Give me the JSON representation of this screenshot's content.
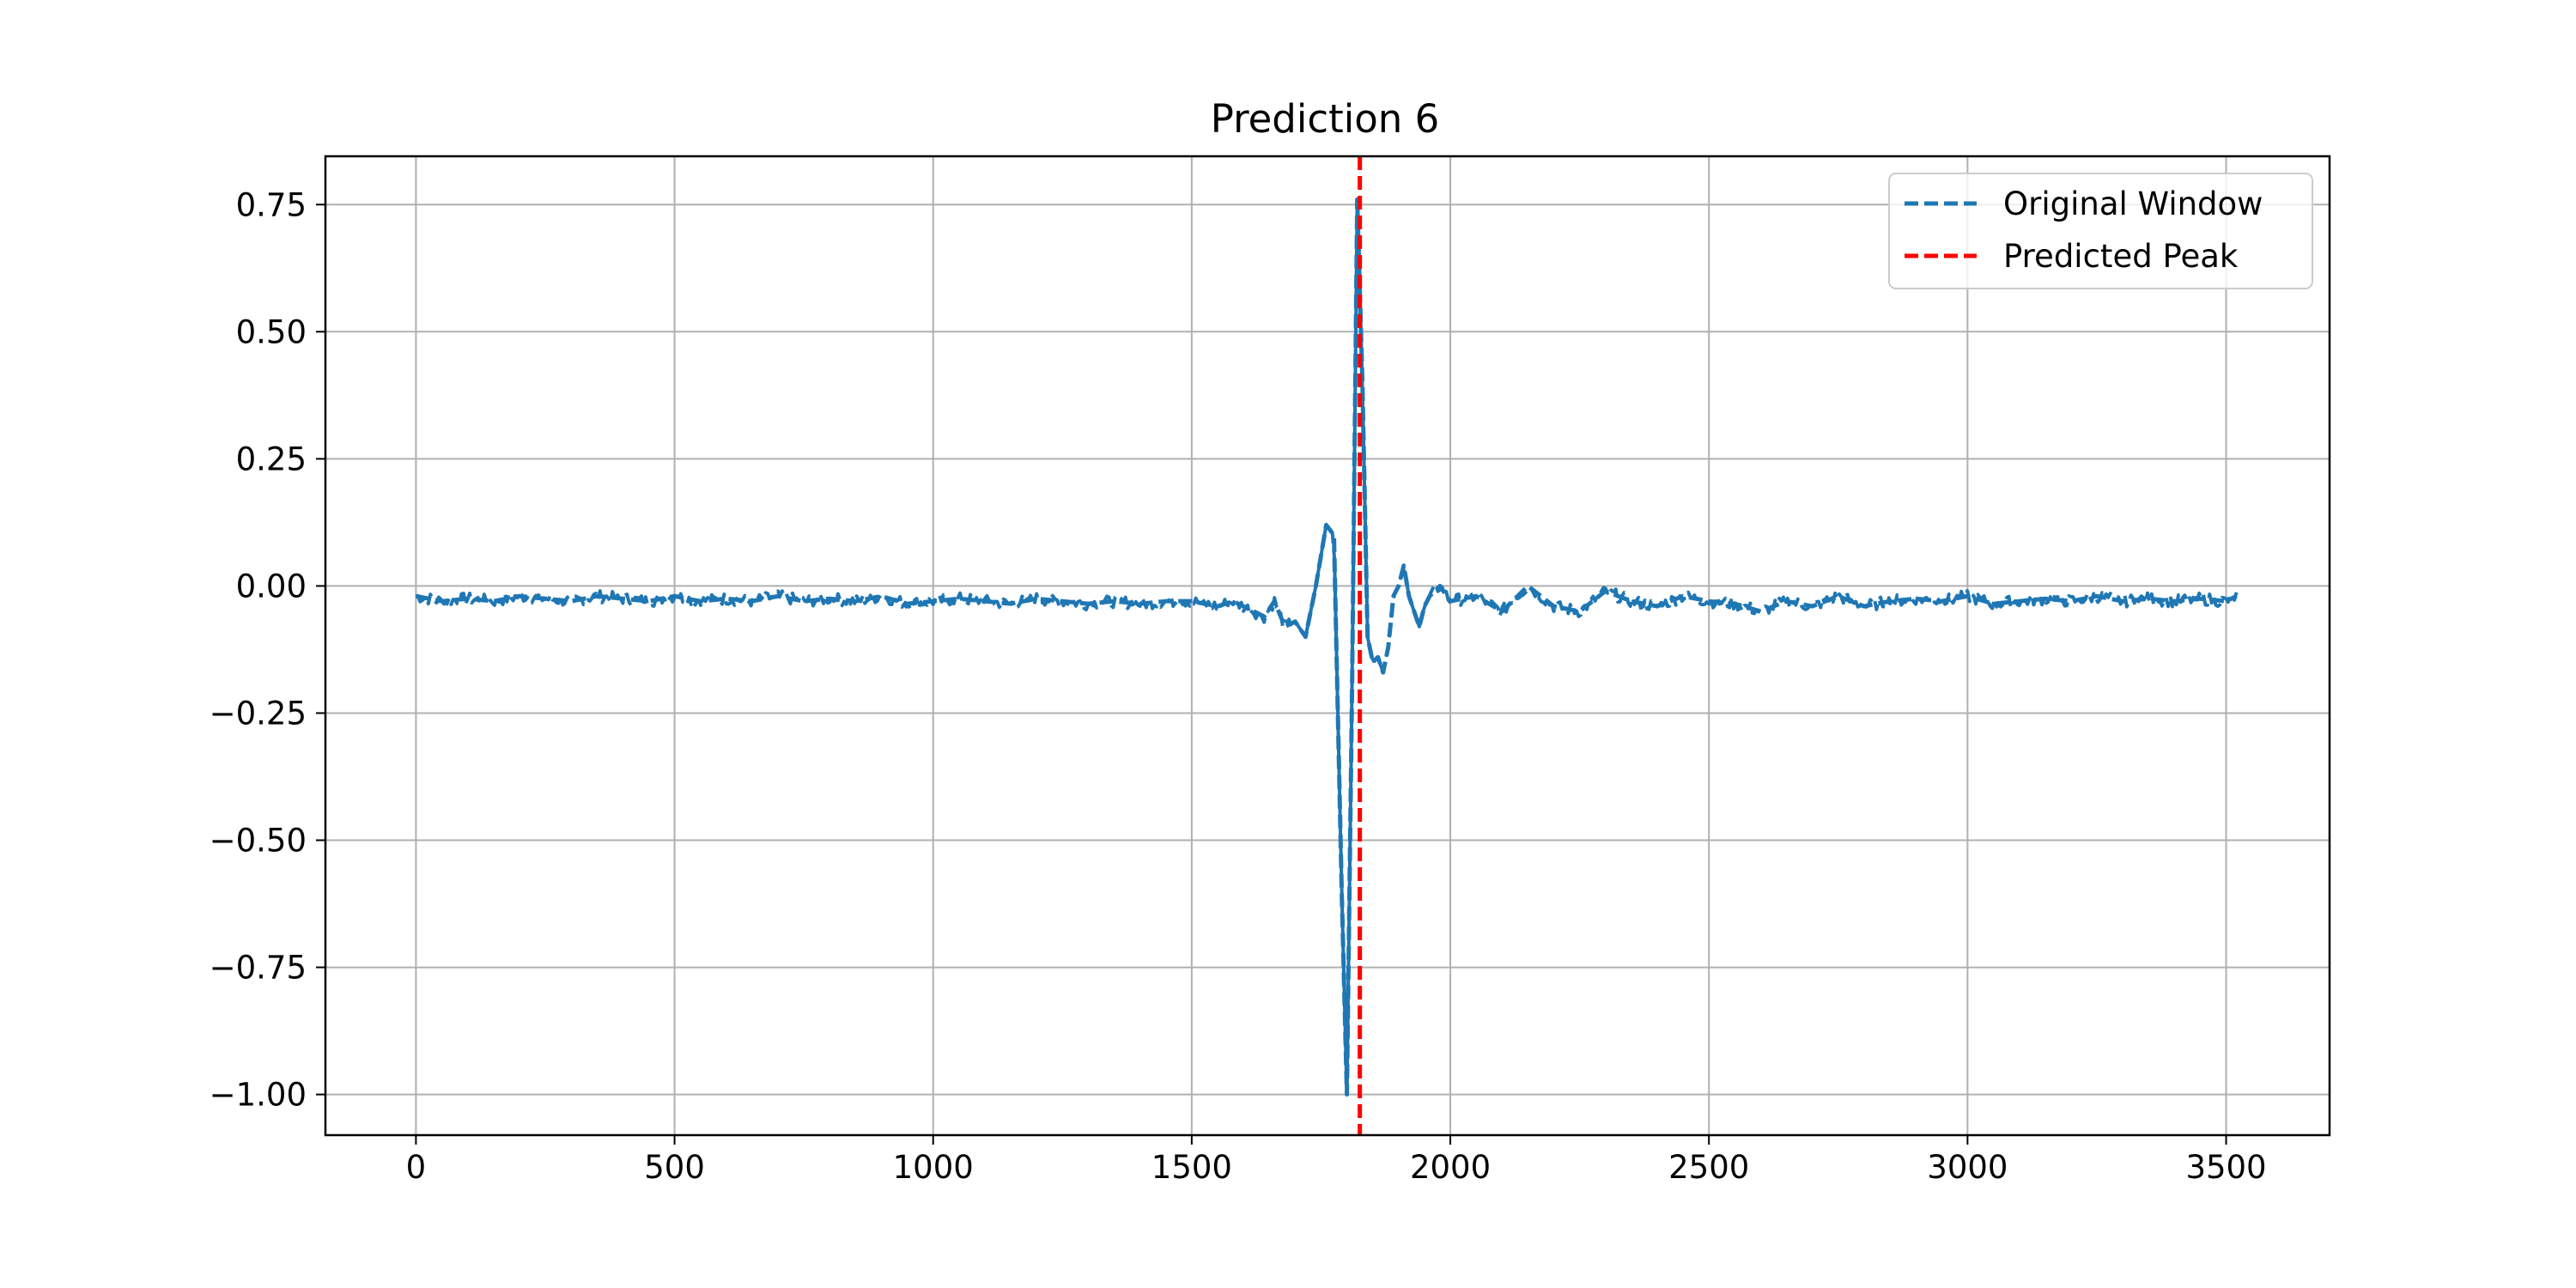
{
  "chart_data": {
    "type": "line",
    "title": "Prediction 6",
    "xlabel": "",
    "ylabel": "",
    "xlim": [
      -175,
      3700
    ],
    "ylim": [
      -1.08,
      0.845
    ],
    "xticks": [
      0,
      500,
      1000,
      1500,
      2000,
      2500,
      3000,
      3500
    ],
    "xtick_labels": [
      "0",
      "500",
      "1000",
      "1500",
      "2000",
      "2500",
      "3000",
      "3500"
    ],
    "yticks": [
      0.75,
      0.5,
      0.25,
      0.0,
      -0.25,
      -0.5,
      -0.75,
      -1.0
    ],
    "ytick_labels": [
      "0.75",
      "0.50",
      "0.25",
      "0.00",
      "−0.25",
      "−0.50",
      "−0.75",
      "−1.00"
    ],
    "grid": true,
    "legend": {
      "position": "upper right",
      "entries": [
        "Original Window",
        "Predicted Peak"
      ]
    },
    "series": [
      {
        "name": "Original Window",
        "style": "dashed",
        "color": "#1f77b4",
        "x": [
          0,
          50,
          100,
          150,
          200,
          250,
          300,
          350,
          400,
          450,
          500,
          550,
          600,
          650,
          700,
          750,
          800,
          850,
          900,
          950,
          1000,
          1050,
          1100,
          1150,
          1200,
          1250,
          1300,
          1350,
          1400,
          1450,
          1500,
          1550,
          1580,
          1610,
          1640,
          1660,
          1680,
          1700,
          1720,
          1740,
          1760,
          1775,
          1790,
          1800,
          1810,
          1820,
          1830,
          1840,
          1850,
          1860,
          1870,
          1880,
          1890,
          1900,
          1910,
          1920,
          1930,
          1940,
          1950,
          1960,
          1980,
          2000,
          2050,
          2100,
          2150,
          2200,
          2250,
          2300,
          2350,
          2400,
          2450,
          2500,
          2550,
          2600,
          2650,
          2700,
          2750,
          2800,
          2850,
          2900,
          2950,
          3000,
          3050,
          3100,
          3150,
          3200,
          3250,
          3300,
          3350,
          3400,
          3450,
          3500,
          3520
        ],
        "values": [
          -0.02,
          -0.03,
          -0.025,
          -0.03,
          -0.02,
          -0.025,
          -0.03,
          -0.02,
          -0.025,
          -0.03,
          -0.02,
          -0.03,
          -0.025,
          -0.03,
          -0.02,
          -0.03,
          -0.025,
          -0.03,
          -0.02,
          -0.035,
          -0.03,
          -0.025,
          -0.03,
          -0.035,
          -0.025,
          -0.03,
          -0.035,
          -0.03,
          -0.035,
          -0.03,
          -0.03,
          -0.04,
          -0.03,
          -0.045,
          -0.06,
          -0.03,
          -0.08,
          -0.07,
          -0.1,
          0.0,
          0.12,
          0.1,
          -0.6,
          -1.0,
          -0.2,
          0.76,
          0.4,
          -0.1,
          -0.15,
          -0.14,
          -0.17,
          -0.12,
          -0.02,
          0.0,
          0.04,
          -0.02,
          -0.05,
          -0.08,
          -0.04,
          -0.02,
          0.0,
          -0.03,
          -0.02,
          -0.05,
          0.0,
          -0.04,
          -0.05,
          -0.01,
          -0.03,
          -0.04,
          -0.02,
          -0.03,
          -0.035,
          -0.05,
          -0.03,
          -0.04,
          -0.02,
          -0.04,
          -0.03,
          -0.025,
          -0.03,
          -0.02,
          -0.035,
          -0.03,
          -0.025,
          -0.03,
          -0.02,
          -0.03,
          -0.025,
          -0.03,
          -0.025,
          -0.03,
          -0.02
        ]
      },
      {
        "name": "Predicted Peak",
        "style": "dashed",
        "color": "#ff0000",
        "type": "vline",
        "x": 1825
      }
    ]
  }
}
